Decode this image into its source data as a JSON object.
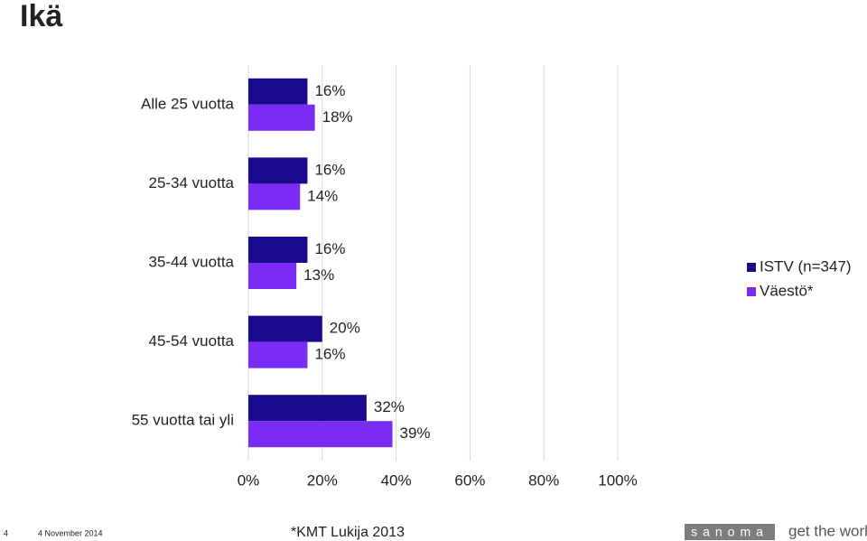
{
  "slide": {
    "title": "Ikä",
    "page_number": "4",
    "date": "4 November 2014",
    "source": "*KMT Lukija 2013",
    "logo": "sanoma",
    "tagline": "get the world"
  },
  "chart_data": {
    "type": "hbar",
    "categories": [
      "Alle 25 vuotta",
      "25-34 vuotta",
      "35-44 vuotta",
      "45-54 vuotta",
      "55 vuotta tai yli"
    ],
    "series": [
      {
        "name": "ISTV (n=347)",
        "color": "#1c0a8e",
        "values": [
          16,
          16,
          16,
          20,
          32
        ],
        "value_labels": [
          "16%",
          "16%",
          "16%",
          "20%",
          "32%"
        ]
      },
      {
        "name": "Väestö*",
        "color": "#7a2cf5",
        "values": [
          18,
          14,
          13,
          16,
          39
        ],
        "value_labels": [
          "18%",
          "14%",
          "13%",
          "16%",
          "39%"
        ]
      }
    ],
    "xlim": [
      0,
      100
    ],
    "xticks": [
      {
        "value": 0,
        "label": "0%"
      },
      {
        "value": 20,
        "label": "20%"
      },
      {
        "value": 40,
        "label": "40%"
      },
      {
        "value": 60,
        "label": "60%"
      },
      {
        "value": 80,
        "label": "80%"
      },
      {
        "value": 100,
        "label": "100%"
      }
    ],
    "grid": true,
    "legend": "right"
  }
}
